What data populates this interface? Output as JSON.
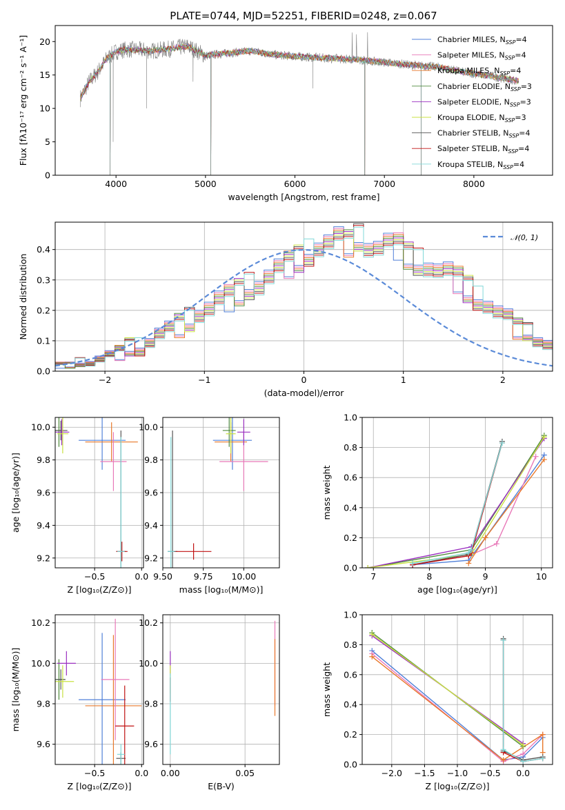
{
  "title": "PLATE=0744, MJD=52251, FIBERID=0248, z=0.067",
  "colors": {
    "chabrier_miles": "#4f7fd8",
    "salpeter_miles": "#e878b8",
    "kroupa_miles": "#e8782a",
    "chabrier_elodie": "#4e8a3a",
    "salpeter_elodie": "#9a2fc0",
    "kroupa_elodie": "#c8e040",
    "chabrier_stelib": "#555555",
    "salpeter_stelib": "#c01010",
    "kroupa_stelib": "#80d8d8",
    "data": "#7f7f7f",
    "normal": "#5a8ad8"
  },
  "chart_data": [
    {
      "type": "line",
      "xlabel": "wavelength [Angstrom, rest frame]",
      "ylabel": "Flux [fλ10⁻¹⁷ erg cm⁻² s⁻¹ A⁻¹]",
      "xlim": [
        3320,
        8880
      ],
      "ylim": [
        0,
        22.4
      ],
      "xticks": [
        "4000",
        "5000",
        "6000",
        "7000",
        "8000"
      ],
      "yticks": [
        "0",
        "5",
        "10",
        "15",
        "20"
      ],
      "legend": "top-right",
      "legend_entries": [
        "Chabrier MILES, N_SSP=4",
        "Salpeter MILES, N_SSP=4",
        "Kroupa MILES, N_SSP=4",
        "Chabrier ELODIE, N_SSP=3",
        "Salpeter ELODIE, N_SSP=3",
        "Kroupa ELODIE, N_SSP=3",
        "Chabrier STELIB, N_SSP=4",
        "Salpeter STELIB, N_SSP=4",
        "Kroupa STELIB, N_SSP=4"
      ],
      "continuum": {
        "x": [
          3600,
          3700,
          3800,
          3900,
          4000,
          4100,
          4200,
          4400,
          4600,
          4800,
          5000,
          5200,
          5500,
          5800,
          6100,
          6400,
          6700,
          7000,
          7300,
          7600,
          7900,
          8200,
          8500
        ],
        "y": [
          11.5,
          14.0,
          15.5,
          17.5,
          18.5,
          18.8,
          18.8,
          18.6,
          18.9,
          19.3,
          17.9,
          18.2,
          18.6,
          18.0,
          17.7,
          17.5,
          17.3,
          16.9,
          16.5,
          16.2,
          15.4,
          14.8,
          14.1
        ]
      },
      "absorption_features": [
        {
          "x": 3934,
          "depth_to": 0
        },
        {
          "x": 3968,
          "depth_to": 5
        },
        {
          "x": 4340,
          "depth_to": 10
        },
        {
          "x": 4861,
          "depth_to": 14
        },
        {
          "x": 5060,
          "depth_to": 0
        },
        {
          "x": 6200,
          "depth_to": 13
        },
        {
          "x": 6780,
          "depth_to": 0
        },
        {
          "x": 7410,
          "depth_to": 0
        }
      ]
    },
    {
      "type": "bar",
      "xlabel": "(data-model)/error",
      "ylabel": "Normed distribution",
      "xlim": [
        -2.5,
        2.5
      ],
      "ylim": [
        0,
        0.49
      ],
      "xticks": [
        "−2",
        "−1",
        "0",
        "1",
        "2"
      ],
      "yticks": [
        "0.0",
        "0.1",
        "0.2",
        "0.3",
        "0.4"
      ],
      "legend": "top-right",
      "legend_entries": [
        "𝒩(0, 1)"
      ],
      "bin_width": 0.1,
      "bin_start": -2.5,
      "histogram": [
        0.02,
        0.02,
        0.03,
        0.03,
        0.04,
        0.05,
        0.06,
        0.08,
        0.08,
        0.1,
        0.12,
        0.13,
        0.15,
        0.17,
        0.2,
        0.21,
        0.23,
        0.24,
        0.26,
        0.28,
        0.29,
        0.31,
        0.33,
        0.35,
        0.37,
        0.39,
        0.41,
        0.42,
        0.43,
        0.42,
        0.44,
        0.42,
        0.41,
        0.42,
        0.41,
        0.38,
        0.36,
        0.35,
        0.33,
        0.32,
        0.3,
        0.27,
        0.24,
        0.22,
        0.19,
        0.17,
        0.14,
        0.13,
        0.11,
        0.09,
        0.08,
        0.07,
        0.06,
        0.05,
        0.05,
        0.04,
        0.04,
        0.03,
        0.03,
        0.02
      ],
      "histogram_spread": [
        0.01,
        0.01,
        0.015,
        0.015,
        0.02,
        0.02,
        0.025,
        0.03,
        0.03,
        0.03,
        0.035,
        0.035,
        0.04,
        0.04,
        0.04,
        0.045,
        0.045,
        0.045,
        0.045,
        0.045,
        0.045,
        0.045,
        0.045,
        0.045,
        0.045,
        0.045,
        0.045,
        0.045,
        0.045,
        0.045,
        0.045,
        0.045,
        0.045,
        0.045,
        0.045,
        0.045,
        0.045,
        0.045,
        0.045,
        0.045,
        0.045,
        0.045,
        0.04,
        0.04,
        0.04,
        0.035,
        0.035,
        0.03,
        0.03,
        0.03,
        0.025,
        0.02,
        0.02,
        0.02,
        0.015,
        0.015,
        0.01,
        0.01,
        0.01,
        0.01
      ]
    },
    {
      "type": "scatter",
      "xlabel": "Z [log₁₀(Z/Z⊙)]",
      "ylabel": "age  [log₁₀(age/yr)]",
      "xlim": [
        -0.92,
        0.02
      ],
      "ylim": [
        9.14,
        10.06
      ],
      "xticks": [
        "−0.5",
        "0.0"
      ],
      "yticks": [
        "9.2",
        "9.4",
        "9.6",
        "9.8",
        "10.0"
      ],
      "points": [
        {
          "x": -0.88,
          "y": 9.98,
          "xerr": 0.05,
          "yerr": 0.1,
          "c": "chabrier_elodie"
        },
        {
          "x": -0.86,
          "y": 9.98,
          "xerr": 0.07,
          "yerr": 0.06,
          "c": "chabrier_stelib"
        },
        {
          "x": -0.85,
          "y": 9.97,
          "xerr": 0.08,
          "yerr": 0.08,
          "c": "salpeter_elodie"
        },
        {
          "x": -0.84,
          "y": 9.96,
          "xerr": 0.06,
          "yerr": 0.12,
          "c": "kroupa_elodie"
        },
        {
          "x": -0.42,
          "y": 9.92,
          "xerr": 0.25,
          "yerr": 0.18,
          "c": "chabrier_miles"
        },
        {
          "x": -0.32,
          "y": 9.91,
          "xerr": 0.28,
          "yerr": 0.12,
          "c": "kroupa_miles"
        },
        {
          "x": -0.3,
          "y": 9.79,
          "xerr": 0.14,
          "yerr": 0.18,
          "c": "salpeter_miles"
        },
        {
          "x": -0.22,
          "y": 9.24,
          "xerr": 0.05,
          "yerr": 0.74,
          "c": "chabrier_stelib"
        },
        {
          "x": -0.21,
          "y": 9.24,
          "xerr": 0.06,
          "yerr": 0.06,
          "c": "salpeter_stelib"
        },
        {
          "x": -0.22,
          "y": 9.24,
          "xerr": 0.04,
          "yerr": 0.7,
          "c": "kroupa_stelib"
        }
      ]
    },
    {
      "type": "scatter",
      "xlabel": "mass [log₁₀(M/M⊙)]",
      "ylabel": "",
      "xlim": [
        9.5,
        10.22
      ],
      "ylim": [
        9.14,
        10.06
      ],
      "xticks": [
        "9.50",
        "9.75",
        "10.00"
      ],
      "yticks": [
        "9.2",
        "9.4",
        "9.6",
        "9.8",
        "10.0"
      ],
      "points": [
        {
          "x": 9.93,
          "y": 9.92,
          "xerr": 0.12,
          "yerr": 0.18,
          "c": "chabrier_miles"
        },
        {
          "x": 9.92,
          "y": 9.91,
          "xerr": 0.1,
          "yerr": 0.12,
          "c": "kroupa_miles"
        },
        {
          "x": 10.0,
          "y": 9.79,
          "xerr": 0.15,
          "yerr": 0.18,
          "c": "salpeter_miles"
        },
        {
          "x": 9.91,
          "y": 9.98,
          "xerr": 0.04,
          "yerr": 0.1,
          "c": "chabrier_elodie"
        },
        {
          "x": 10.0,
          "y": 9.97,
          "xerr": 0.04,
          "yerr": 0.08,
          "c": "salpeter_elodie"
        },
        {
          "x": 9.92,
          "y": 9.96,
          "xerr": 0.03,
          "yerr": 0.12,
          "c": "kroupa_elodie"
        },
        {
          "x": 9.56,
          "y": 9.24,
          "xerr": 0.03,
          "yerr": 0.74,
          "c": "chabrier_stelib"
        },
        {
          "x": 9.69,
          "y": 9.24,
          "xerr": 0.11,
          "yerr": 0.05,
          "c": "salpeter_stelib"
        },
        {
          "x": 9.55,
          "y": 9.24,
          "xerr": 0.02,
          "yerr": 0.7,
          "c": "kroupa_stelib"
        }
      ]
    },
    {
      "type": "line",
      "xlabel": "age  [log₁₀(age/yr)]",
      "ylabel": "mass weight",
      "xlim": [
        6.8,
        10.2
      ],
      "ylim": [
        0,
        1.0
      ],
      "xticks": [
        "7",
        "8",
        "9",
        "10"
      ],
      "yticks": [
        "0.0",
        "0.2",
        "0.4",
        "0.6",
        "0.8",
        "1.0"
      ],
      "series": [
        {
          "c": "chabrier_miles",
          "x": [
            7.7,
            8.7,
            9.0,
            10.05
          ],
          "y": [
            0.02,
            0.05,
            0.2,
            0.75
          ]
        },
        {
          "c": "salpeter_miles",
          "x": [
            7.7,
            8.7,
            9.2,
            9.9
          ],
          "y": [
            0.02,
            0.08,
            0.16,
            0.74
          ]
        },
        {
          "c": "kroupa_miles",
          "x": [
            8.7,
            9.0,
            10.05
          ],
          "y": [
            0.03,
            0.2,
            0.72
          ]
        },
        {
          "c": "chabrier_elodie",
          "x": [
            6.9,
            8.75,
            10.05
          ],
          "y": [
            0.0,
            0.12,
            0.88
          ]
        },
        {
          "c": "salpeter_elodie",
          "x": [
            6.9,
            8.75,
            10.05
          ],
          "y": [
            0.0,
            0.14,
            0.86
          ]
        },
        {
          "c": "kroupa_elodie",
          "x": [
            6.9,
            8.75,
            10.05
          ],
          "y": [
            0.0,
            0.09,
            0.87
          ]
        },
        {
          "c": "chabrier_stelib",
          "x": [
            7.7,
            8.7,
            8.75,
            9.3
          ],
          "y": [
            0.02,
            0.09,
            0.12,
            0.84
          ]
        },
        {
          "c": "salpeter_stelib",
          "x": [
            7.7,
            8.7,
            8.75,
            9.3
          ],
          "y": [
            0.02,
            0.08,
            0.1,
            0.83
          ]
        },
        {
          "c": "kroupa_stelib",
          "x": [
            7.7,
            8.7,
            8.75,
            9.3
          ],
          "y": [
            0.03,
            0.1,
            0.12,
            0.83
          ]
        }
      ]
    },
    {
      "type": "scatter",
      "xlabel": "Z [log₁₀(Z/Z⊙)]",
      "ylabel": "mass [log₁₀(M/M⊙)]",
      "xlim": [
        -0.92,
        0.02
      ],
      "ylim": [
        9.5,
        10.24
      ],
      "xticks": [
        "−0.5",
        "0.0"
      ],
      "yticks": [
        "9.6",
        "9.8",
        "10.0",
        "10.2"
      ],
      "points": [
        {
          "x": -0.88,
          "y": 9.92,
          "xerr": 0.06,
          "yerr": 0.1,
          "c": "chabrier_elodie"
        },
        {
          "x": -0.86,
          "y": 9.92,
          "xerr": 0.05,
          "yerr": 0.05,
          "c": "chabrier_stelib"
        },
        {
          "x": -0.8,
          "y": 10.0,
          "xerr": 0.1,
          "yerr": 0.06,
          "c": "salpeter_elodie"
        },
        {
          "x": -0.84,
          "y": 9.91,
          "xerr": 0.12,
          "yerr": 0.08,
          "c": "kroupa_elodie"
        },
        {
          "x": -0.42,
          "y": 9.82,
          "xerr": 0.25,
          "yerr": 0.33,
          "c": "chabrier_miles"
        },
        {
          "x": -0.3,
          "y": 9.79,
          "xerr": 0.3,
          "yerr": 0.35,
          "c": "kroupa_miles"
        },
        {
          "x": -0.28,
          "y": 9.92,
          "xerr": 0.15,
          "yerr": 0.3,
          "c": "salpeter_miles"
        },
        {
          "x": -0.22,
          "y": 9.53,
          "xerr": 0.05,
          "yerr": 0.03,
          "c": "chabrier_stelib"
        },
        {
          "x": -0.18,
          "y": 9.69,
          "xerr": 0.1,
          "yerr": 0.2,
          "c": "salpeter_stelib"
        },
        {
          "x": -0.22,
          "y": 9.55,
          "xerr": 0.04,
          "yerr": 0.05,
          "c": "kroupa_stelib"
        }
      ]
    },
    {
      "type": "scatter",
      "xlabel": "E(B-V)",
      "ylabel": "",
      "xlim": [
        -0.005,
        0.073
      ],
      "ylim": [
        9.5,
        10.24
      ],
      "xticks": [
        "0.00",
        "0.05"
      ],
      "yticks": [
        "9.6",
        "9.8",
        "10.0",
        "10.2"
      ],
      "points": [
        {
          "x": 0.0,
          "y": 10.0,
          "xerr": 0.0,
          "yerr": 0.06,
          "c": "salpeter_elodie"
        },
        {
          "x": 0.0,
          "y": 9.92,
          "xerr": 0.0,
          "yerr": 0.07,
          "c": "kroupa_elodie"
        },
        {
          "x": 0.0,
          "y": 9.87,
          "xerr": 0.0,
          "yerr": 0.06,
          "c": "salpeter_stelib"
        },
        {
          "x": 0.0,
          "y": 9.75,
          "xerr": 0.0,
          "yerr": 0.2,
          "c": "kroupa_stelib"
        },
        {
          "x": 0.07,
          "y": 10.0,
          "xerr": 0.0,
          "yerr": 0.21,
          "c": "salpeter_miles"
        },
        {
          "x": 0.07,
          "y": 9.93,
          "xerr": 0.0,
          "yerr": 0.19,
          "c": "kroupa_miles"
        }
      ]
    },
    {
      "type": "line",
      "xlabel": "Z [log₁₀(Z/Z⊙)]",
      "ylabel": "mass weight",
      "xlim": [
        -2.45,
        0.45
      ],
      "ylim": [
        0,
        1.0
      ],
      "xticks": [
        "−2.0",
        "−1.5",
        "−1.0",
        "−0.5",
        "0.0"
      ],
      "yticks": [
        "0.0",
        "0.2",
        "0.4",
        "0.6",
        "0.8",
        "1.0"
      ],
      "series": [
        {
          "c": "chabrier_miles",
          "x": [
            -2.3,
            -0.3,
            0.0,
            0.3
          ],
          "y": [
            0.76,
            0.03,
            0.05,
            0.18
          ]
        },
        {
          "c": "salpeter_miles",
          "x": [
            -2.3,
            -0.3,
            0.0,
            0.3
          ],
          "y": [
            0.74,
            0.02,
            0.07,
            0.2
          ]
        },
        {
          "c": "kroupa_miles",
          "x": [
            -2.3,
            -0.3,
            0.3,
            0.3
          ],
          "y": [
            0.72,
            0.03,
            0.2,
            0.08
          ]
        },
        {
          "c": "chabrier_elodie",
          "x": [
            -2.3,
            0.0
          ],
          "y": [
            0.88,
            0.12
          ]
        },
        {
          "c": "salpeter_elodie",
          "x": [
            -2.3,
            0.0
          ],
          "y": [
            0.86,
            0.14
          ]
        },
        {
          "c": "kroupa_elodie",
          "x": [
            -2.3,
            0.0
          ],
          "y": [
            0.87,
            0.13
          ]
        },
        {
          "c": "chabrier_stelib",
          "x": [
            -0.3,
            -0.3,
            0.0,
            0.3
          ],
          "y": [
            0.84,
            0.09,
            0.03,
            0.05
          ]
        },
        {
          "c": "salpeter_stelib",
          "x": [
            -0.3,
            -0.3,
            0.0,
            0.3
          ],
          "y": [
            0.83,
            0.08,
            0.02,
            0.04
          ]
        },
        {
          "c": "kroupa_stelib",
          "x": [
            -0.3,
            -0.3,
            0.0,
            0.3
          ],
          "y": [
            0.83,
            0.1,
            0.02,
            0.04
          ]
        }
      ]
    }
  ]
}
